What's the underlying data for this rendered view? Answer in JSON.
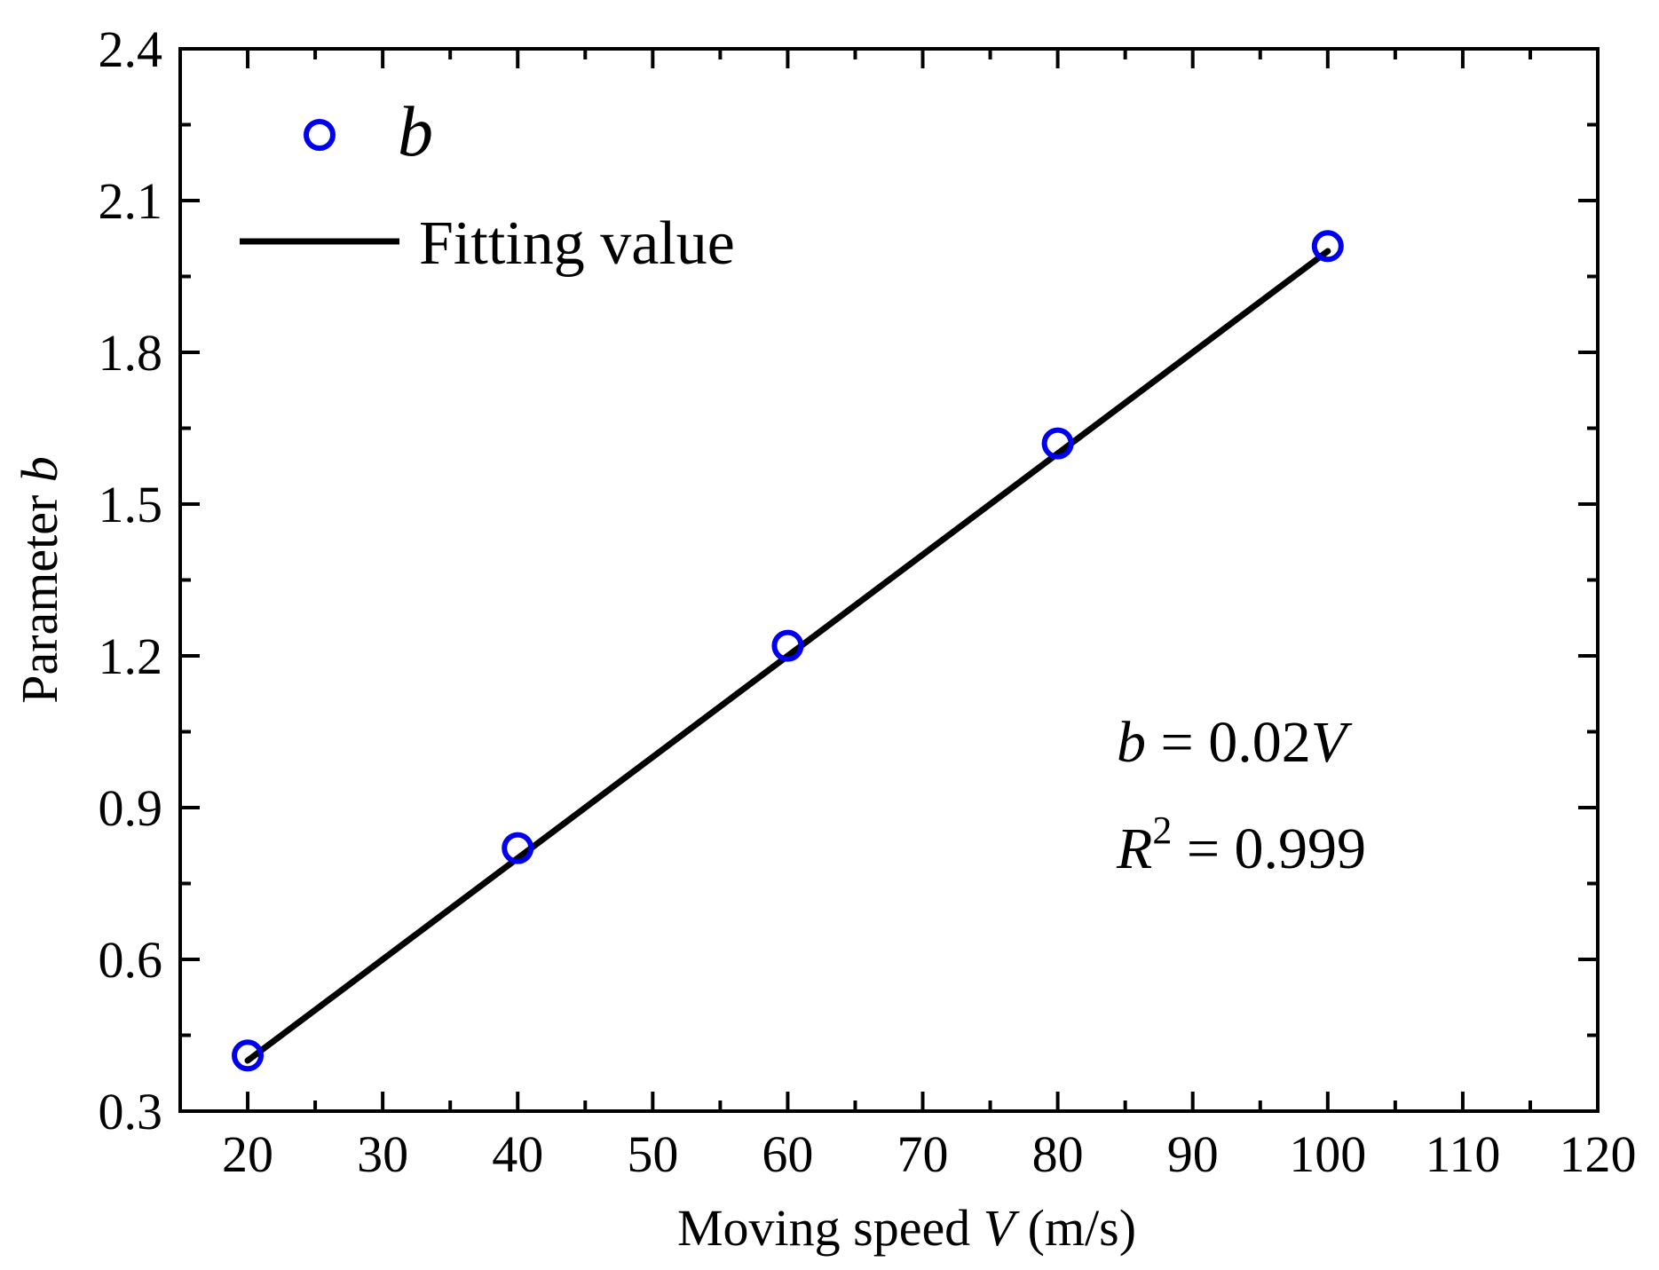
{
  "chart_data": {
    "type": "scatter",
    "title": "",
    "xlabel": {
      "prefix": "Moving speed ",
      "variable": "V",
      "suffix": " (m/s)"
    },
    "ylabel": {
      "prefix": "Parameter ",
      "variable": "b"
    },
    "xlim": [
      15,
      120
    ],
    "ylim": [
      0.3,
      2.4
    ],
    "xticks": [
      "20",
      "30",
      "40",
      "50",
      "60",
      "70",
      "80",
      "90",
      "100",
      "110",
      "120"
    ],
    "xtick_values": [
      20,
      30,
      40,
      50,
      60,
      70,
      80,
      90,
      100,
      110,
      120
    ],
    "yticks": [
      "0.3",
      "0.6",
      "0.9",
      "1.2",
      "1.5",
      "1.8",
      "2.1",
      "2.4"
    ],
    "ytick_values": [
      0.3,
      0.6,
      0.9,
      1.2,
      1.5,
      1.8,
      2.1,
      2.4
    ],
    "grid": false,
    "legend_position": "top-left",
    "series": [
      {
        "name": "b",
        "kind": "scatter",
        "marker": "open-circle",
        "color": "#0000ee",
        "x": [
          20,
          40,
          60,
          80,
          100
        ],
        "y": [
          0.41,
          0.82,
          1.22,
          1.62,
          2.01
        ]
      },
      {
        "name": "Fitting value",
        "kind": "line",
        "color": "#000000",
        "x": [
          20,
          100
        ],
        "y": [
          0.4,
          2.0
        ]
      }
    ],
    "annotations": {
      "equation": {
        "lhs": "b",
        "rhs_number": " = 0.02",
        "rhs_var": "V"
      },
      "r2": {
        "symbol": "R",
        "exponent": "2",
        "value": " = 0.999"
      }
    }
  }
}
